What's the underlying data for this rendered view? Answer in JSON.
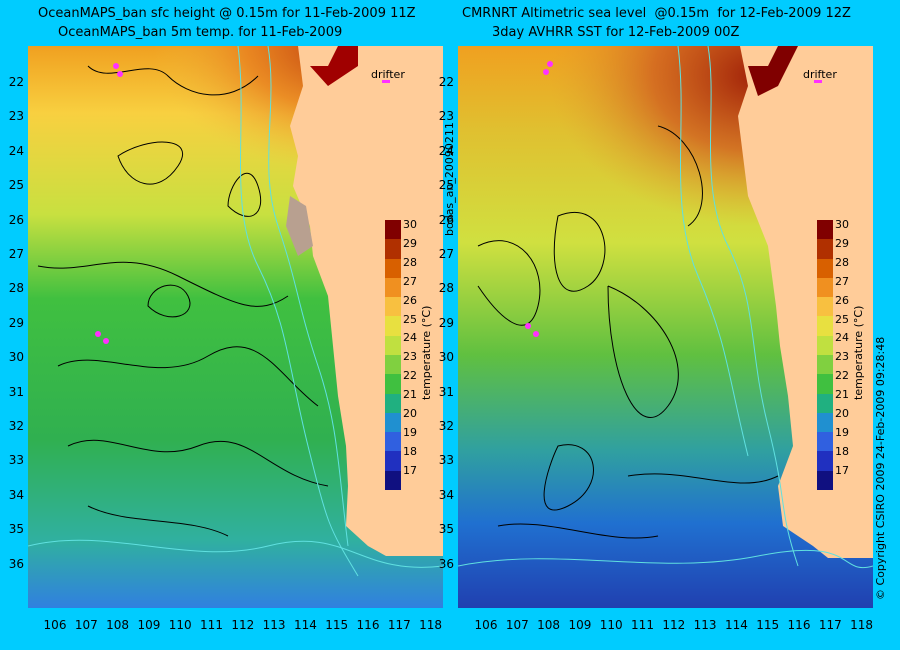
{
  "left_panel": {
    "title_line1": "OceanMAPS_ban sfc height @ 0.15m for 11-Feb-2009 11Z",
    "title_line2": "OceanMAPS_ban 5m temp. for 11-Feb-2009",
    "drifter_label": "drifter",
    "colorbar_title": "temperature (°C)"
  },
  "right_panel": {
    "title_line1": "CMRNRT Altimetric sea level  @0.15m  for 12-Feb-2009 12Z",
    "title_line2": "3day AVHRR SST for 12-Feb-2009 00Z",
    "drifter_label": "drifter",
    "colorbar_title": "temperature (°C)"
  },
  "side_label": "bodas_an_20090211",
  "copyright": "© Copyright CSIRO 2009   24-Feb-2009 09:28:48",
  "axes": {
    "lat_ticks": [
      "22",
      "23",
      "24",
      "25",
      "26",
      "27",
      "28",
      "29",
      "30",
      "31",
      "32",
      "33",
      "34",
      "35",
      "36"
    ],
    "lon_ticks": [
      "106",
      "107",
      "108",
      "109",
      "110",
      "111",
      "112",
      "113",
      "114",
      "115",
      "116",
      "117",
      "118"
    ]
  },
  "colorbar": {
    "ticks": [
      "30",
      "29",
      "28",
      "27",
      "26",
      "25",
      "24",
      "23",
      "22",
      "21",
      "20",
      "19",
      "18",
      "17"
    ],
    "range": [
      16,
      30
    ],
    "colors": [
      "#800000",
      "#b03000",
      "#d86000",
      "#f09020",
      "#f8c040",
      "#e8e040",
      "#c0e040",
      "#80d040",
      "#40c040",
      "#20b080",
      "#2090d0",
      "#3060e0",
      "#2030c0",
      "#101080"
    ]
  }
}
